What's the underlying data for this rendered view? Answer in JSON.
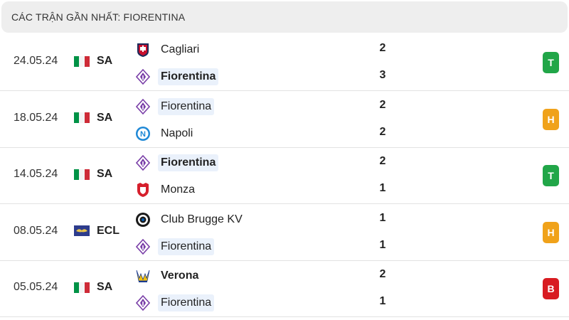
{
  "header": {
    "title": "CÁC TRẬN GẦN NHẤT: FIORENTINA"
  },
  "colors": {
    "win": "#21a648",
    "draw": "#f0a21a",
    "loss": "#d81b21",
    "highlight": "#eaf1fb"
  },
  "matches": [
    {
      "date": "24.05.24",
      "league": "SA",
      "league_flag": "italy-flag",
      "home": {
        "name": "Cagliari",
        "crest": "cagliari-crest",
        "score": "2",
        "highlight": false,
        "bold": false
      },
      "away": {
        "name": "Fiorentina",
        "crest": "fiorentina-crest",
        "score": "3",
        "highlight": true,
        "bold": true
      },
      "result": "T",
      "result_type": "win"
    },
    {
      "date": "18.05.24",
      "league": "SA",
      "league_flag": "italy-flag",
      "home": {
        "name": "Fiorentina",
        "crest": "fiorentina-crest",
        "score": "2",
        "highlight": true,
        "bold": false
      },
      "away": {
        "name": "Napoli",
        "crest": "napoli-crest",
        "score": "2",
        "highlight": false,
        "bold": false
      },
      "result": "H",
      "result_type": "draw"
    },
    {
      "date": "14.05.24",
      "league": "SA",
      "league_flag": "italy-flag",
      "home": {
        "name": "Fiorentina",
        "crest": "fiorentina-crest",
        "score": "2",
        "highlight": true,
        "bold": true
      },
      "away": {
        "name": "Monza",
        "crest": "monza-crest",
        "score": "1",
        "highlight": false,
        "bold": false
      },
      "result": "T",
      "result_type": "win"
    },
    {
      "date": "08.05.24",
      "league": "ECL",
      "league_flag": "europe-flag",
      "home": {
        "name": "Club Brugge KV",
        "crest": "club-brugge-crest",
        "score": "1",
        "highlight": false,
        "bold": false
      },
      "away": {
        "name": "Fiorentina",
        "crest": "fiorentina-crest",
        "score": "1",
        "highlight": true,
        "bold": false
      },
      "result": "H",
      "result_type": "draw"
    },
    {
      "date": "05.05.24",
      "league": "SA",
      "league_flag": "italy-flag",
      "home": {
        "name": "Verona",
        "crest": "verona-crest",
        "score": "2",
        "highlight": false,
        "bold": true
      },
      "away": {
        "name": "Fiorentina",
        "crest": "fiorentina-crest",
        "score": "1",
        "highlight": true,
        "bold": false
      },
      "result": "B",
      "result_type": "loss"
    }
  ]
}
